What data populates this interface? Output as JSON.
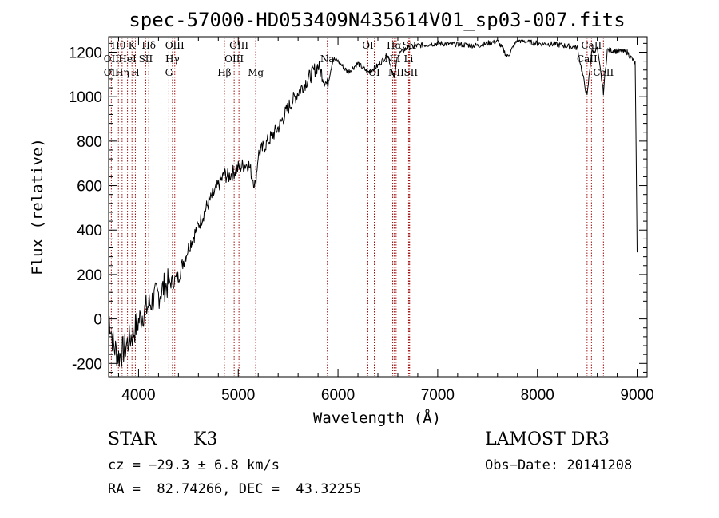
{
  "chart_data": {
    "type": "line",
    "title": "spec-57000-HD053409N435614V01_sp03-007.fits",
    "xlabel": "Wavelength (Å)",
    "ylabel": "Flux (relative)",
    "xlim": [
      3700,
      9100
    ],
    "ylim": [
      -260,
      1270
    ],
    "xticks": [
      4000,
      5000,
      6000,
      7000,
      8000,
      9000
    ],
    "yticks": [
      -200,
      0,
      200,
      400,
      600,
      800,
      1000,
      1200
    ],
    "series": [
      {
        "name": "flux",
        "x": [
          3700,
          3750,
          3800,
          3850,
          3900,
          3950,
          4000,
          4050,
          4100,
          4150,
          4200,
          4250,
          4300,
          4350,
          4400,
          4450,
          4500,
          4600,
          4700,
          4800,
          4861,
          4900,
          5000,
          5100,
          5172,
          5200,
          5300,
          5400,
          5500,
          5600,
          5700,
          5800,
          5893,
          5950,
          6000,
          6100,
          6200,
          6300,
          6400,
          6500,
          6563,
          6600,
          6700,
          6800,
          7000,
          7200,
          7400,
          7600,
          7700,
          7800,
          8000,
          8200,
          8400,
          8498,
          8542,
          8600,
          8662,
          8700,
          8800,
          8900,
          8980,
          9000
        ],
        "y": [
          20,
          -120,
          -170,
          -140,
          -100,
          -60,
          -10,
          30,
          60,
          90,
          110,
          140,
          160,
          170,
          190,
          260,
          320,
          420,
          520,
          600,
          650,
          640,
          680,
          700,
          600,
          740,
          800,
          860,
          950,
          1020,
          1080,
          1140,
          1050,
          1170,
          1160,
          1110,
          1150,
          1110,
          1140,
          1190,
          1080,
          1190,
          1220,
          1230,
          1240,
          1235,
          1230,
          1250,
          1180,
          1255,
          1240,
          1235,
          1220,
          1000,
          1200,
          1215,
          1020,
          1210,
          1205,
          1200,
          1150,
          300
        ]
      }
    ],
    "lines": [
      {
        "name": "Hθ",
        "wave": 3798,
        "row": 1
      },
      {
        "name": "OII",
        "wave": 3727,
        "row": 2
      },
      {
        "name": "OII",
        "wave": 3727,
        "row": 3
      },
      {
        "name": "Hη",
        "wave": 3835,
        "row": 3
      },
      {
        "name": "HeI",
        "wave": 3889,
        "row": 2
      },
      {
        "name": "K",
        "wave": 3934,
        "row": 1
      },
      {
        "name": "H",
        "wave": 3968,
        "row": 3
      },
      {
        "name": "SII",
        "wave": 4072,
        "row": 2
      },
      {
        "name": "Hδ",
        "wave": 4102,
        "row": 1
      },
      {
        "name": "OIII",
        "wave": 4363,
        "row": 1
      },
      {
        "name": "Hγ",
        "wave": 4340,
        "row": 2
      },
      {
        "name": "G",
        "wave": 4304,
        "row": 3
      },
      {
        "name": "Hβ",
        "wave": 4861,
        "row": 3
      },
      {
        "name": "OIII",
        "wave": 5007,
        "row": 1
      },
      {
        "name": "OIII",
        "wave": 4959,
        "row": 2
      },
      {
        "name": "Mg",
        "wave": 5175,
        "row": 3
      },
      {
        "name": "Na",
        "wave": 5893,
        "row": 2
      },
      {
        "name": "OI",
        "wave": 6300,
        "row": 1
      },
      {
        "name": "OI",
        "wave": 6364,
        "row": 3
      },
      {
        "name": "Hα",
        "wave": 6563,
        "row": 1
      },
      {
        "name": "NII",
        "wave": 6548,
        "row": 2
      },
      {
        "name": "NII",
        "wave": 6583,
        "row": 3
      },
      {
        "name": "SII",
        "wave": 6717,
        "row": 1
      },
      {
        "name": "Li",
        "wave": 6708,
        "row": 2
      },
      {
        "name": "SII",
        "wave": 6731,
        "row": 3
      },
      {
        "name": "CaII",
        "wave": 8542,
        "row": 1
      },
      {
        "name": "CaII",
        "wave": 8498,
        "row": 2
      },
      {
        "name": "CaII",
        "wave": 8662,
        "row": 3
      }
    ]
  },
  "info": {
    "object_class": "STAR",
    "subclass": "K3",
    "survey": "LAMOST DR3",
    "cz": "cz = −29.3 ± 6.8 km/s",
    "obs_date": "Obs−Date: 20141208",
    "coords": "RA =  82.74266, DEC =  43.32255"
  },
  "colors": {
    "line_markers": "#a01010",
    "spectrum": "#000000"
  }
}
